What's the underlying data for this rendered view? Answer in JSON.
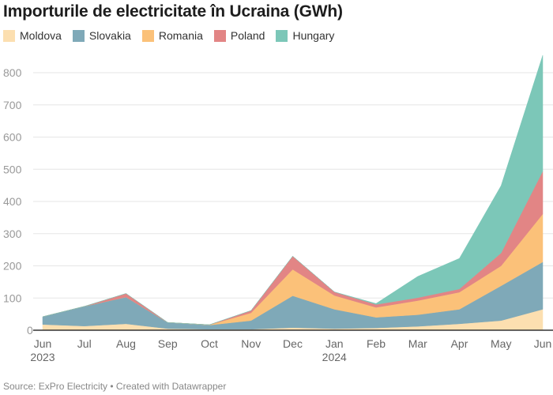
{
  "title": "Importurile de electricitate în Ucraina (GWh)",
  "source": "Source: ExPro Electricity • Created with Datawrapper",
  "chart_data": {
    "type": "area",
    "stacked": true,
    "title": "Importurile de electricitate în Ucraina (GWh)",
    "xlabel": "",
    "ylabel": "",
    "ylim": [
      0,
      860
    ],
    "yticks": [
      0,
      100,
      200,
      300,
      400,
      500,
      600,
      700,
      800
    ],
    "categories": [
      "Jun",
      "Jul",
      "Aug",
      "Sep",
      "Oct",
      "Nov",
      "Dec",
      "Jan",
      "Feb",
      "Mar",
      "Apr",
      "May",
      "Jun"
    ],
    "year_labels": {
      "0": "2023",
      "7": "2024"
    },
    "grid": true,
    "legend": "top-left",
    "series": [
      {
        "name": "Moldova",
        "color": "#fcdfb0",
        "values": [
          18,
          13,
          20,
          5,
          3,
          3,
          8,
          5,
          7,
          12,
          20,
          30,
          65
        ]
      },
      {
        "name": "Slovakia",
        "color": "#7fa9b8",
        "values": [
          24,
          61,
          83,
          19,
          13,
          27,
          99,
          60,
          33,
          36,
          45,
          108,
          147
        ]
      },
      {
        "name": "Romania",
        "color": "#fbc179",
        "values": [
          0,
          0,
          0,
          0,
          1,
          24,
          82,
          43,
          31,
          44,
          53,
          62,
          149
        ]
      },
      {
        "name": "Poland",
        "color": "#e28585",
        "values": [
          0,
          0,
          11,
          0,
          0,
          7,
          41,
          11,
          9,
          9,
          10,
          40,
          133
        ]
      },
      {
        "name": "Hungary",
        "color": "#7cc7b8",
        "values": [
          0,
          0,
          0,
          0,
          0,
          0,
          0,
          0,
          3,
          66,
          95,
          209,
          360
        ]
      }
    ]
  }
}
